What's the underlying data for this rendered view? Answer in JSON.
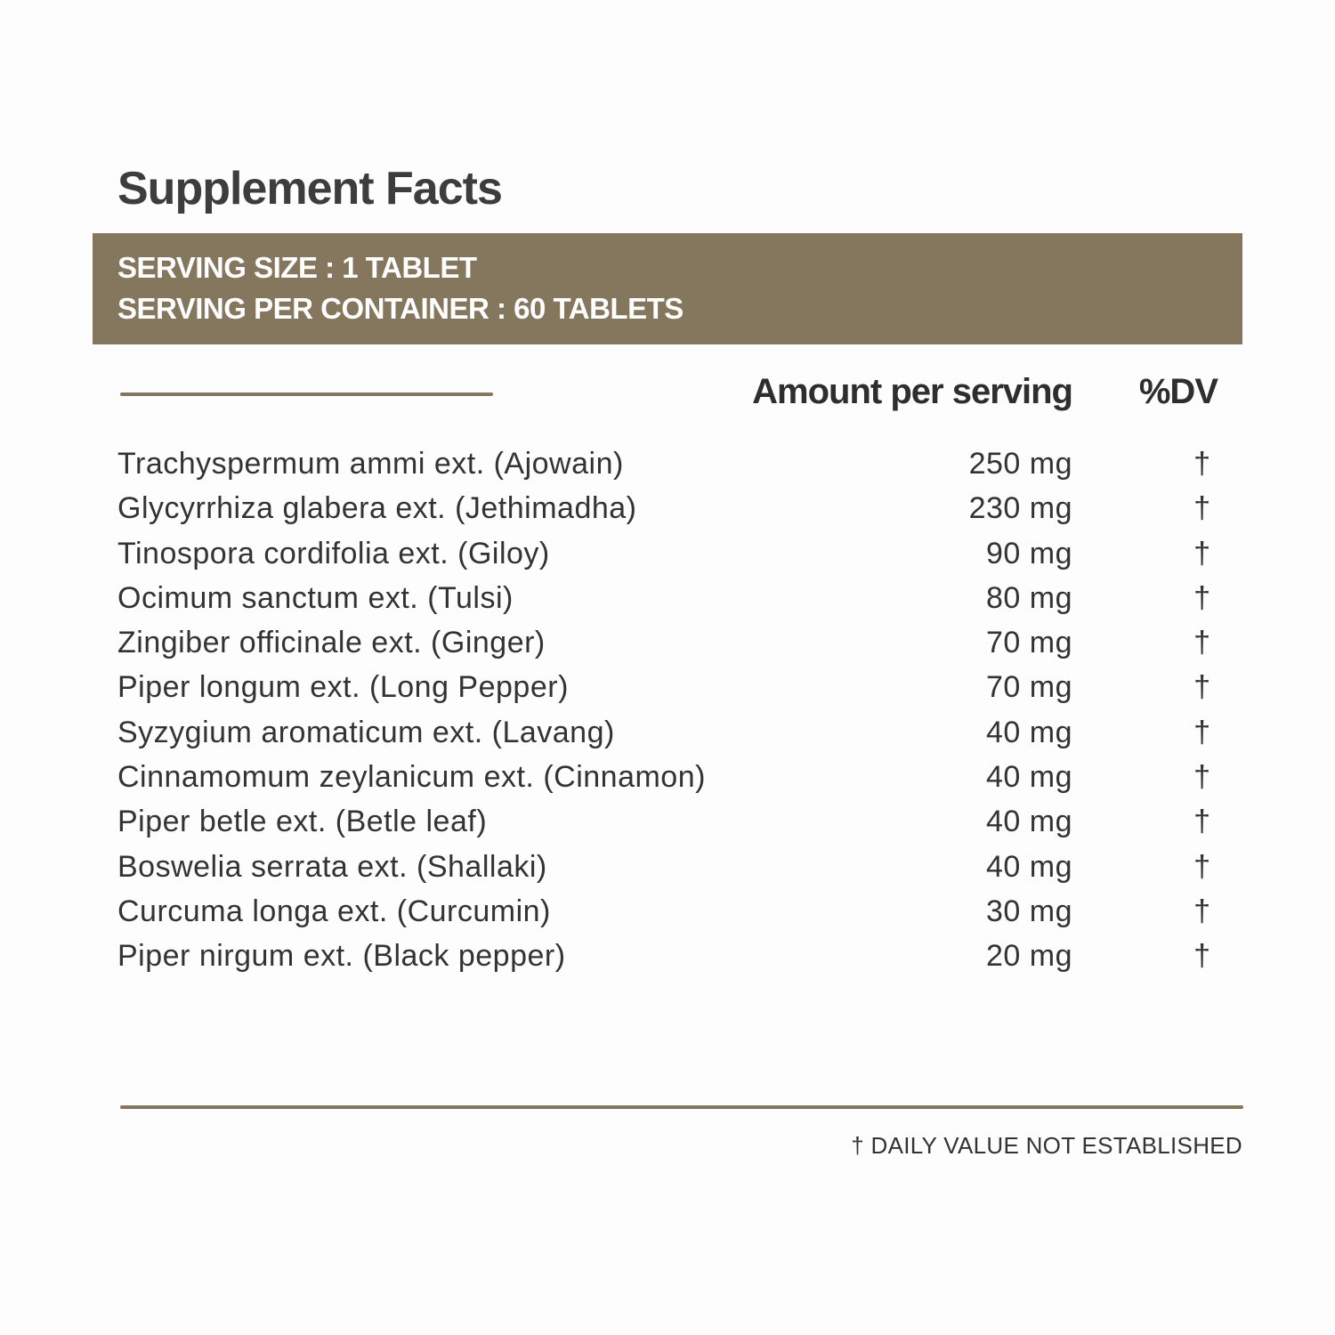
{
  "title": "Supplement Facts",
  "serving": {
    "size": "SERVING SIZE : 1 TABLET",
    "per_container": "SERVING PER CONTAINER : 60 TABLETS"
  },
  "columns": {
    "amount": "Amount per serving",
    "dv": "%DV"
  },
  "rows": [
    {
      "name": "Trachyspermum ammi ext. (Ajowain)",
      "amount": "250 mg",
      "dv": "†"
    },
    {
      "name": "Glycyrrhiza glabera ext. (Jethimadha)",
      "amount": "230 mg",
      "dv": "†"
    },
    {
      "name": "Tinospora cordifolia ext. (Giloy)",
      "amount": "90 mg",
      "dv": "†"
    },
    {
      "name": "Ocimum sanctum ext. (Tulsi)",
      "amount": "80 mg",
      "dv": "†"
    },
    {
      "name": "Zingiber officinale ext. (Ginger)",
      "amount": "70 mg",
      "dv": "†"
    },
    {
      "name": "Piper longum ext. (Long Pepper)",
      "amount": "70 mg",
      "dv": "†"
    },
    {
      "name": "Syzygium aromaticum ext. (Lavang)",
      "amount": "40 mg",
      "dv": "†"
    },
    {
      "name": "Cinnamomum zeylanicum ext. (Cinnamon)",
      "amount": "40 mg",
      "dv": "†"
    },
    {
      "name": "Piper betle ext. (Betle leaf)",
      "amount": "40 mg",
      "dv": "†"
    },
    {
      "name": "Boswelia serrata ext. (Shallaki)",
      "amount": "40 mg",
      "dv": "†"
    },
    {
      "name": "Curcuma longa ext. (Curcumin)",
      "amount": "30 mg",
      "dv": "†"
    },
    {
      "name": "Piper nirgum ext. (Black pepper)",
      "amount": "20 mg",
      "dv": "†"
    }
  ],
  "footnote": "† DAILY VALUE NOT ESTABLISHED",
  "colors": {
    "accent": "#85765e",
    "text": "#333333"
  }
}
